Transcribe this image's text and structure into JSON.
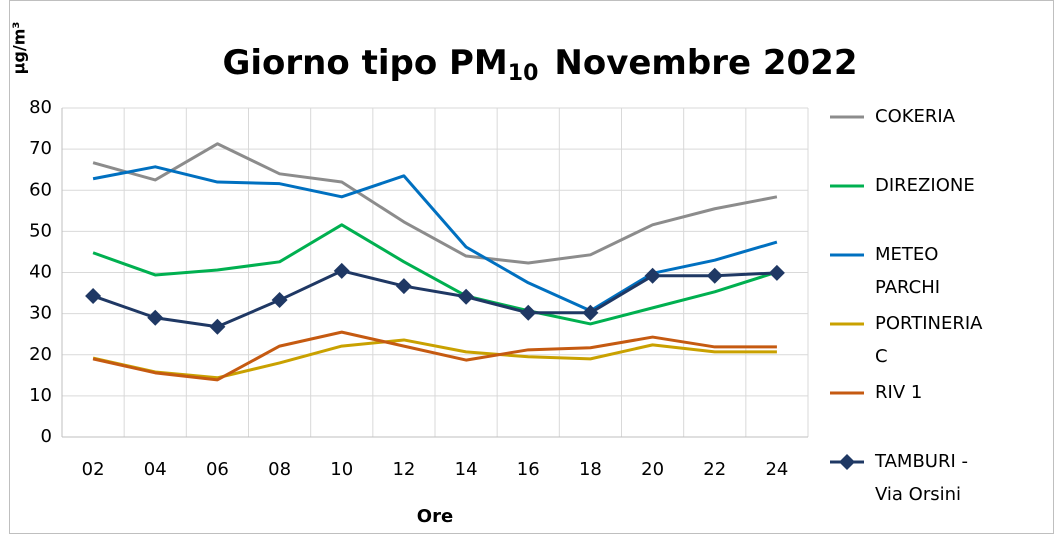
{
  "chart_data": {
    "type": "line",
    "title": [
      "Giorno tipo PM",
      "10",
      "Novembre 2022"
    ],
    "y_label": "µg/m³",
    "x_label": "Ore",
    "categories": [
      "02",
      "04",
      "06",
      "08",
      "10",
      "12",
      "14",
      "16",
      "18",
      "20",
      "22",
      "24"
    ],
    "series": [
      {
        "name": "COKERIA",
        "color": "#8c8c8c",
        "values": [
          66.7,
          62.5,
          71.3,
          64,
          62,
          52.3,
          44,
          42.3,
          44.3,
          51.6,
          55.5,
          58.4
        ]
      },
      {
        "name": "DIREZIONE",
        "color": "#00b050",
        "values": [
          44.8,
          39.4,
          40.6,
          42.6,
          51.6,
          42.6,
          34.3,
          30.7,
          27.5,
          31.4,
          35.3,
          40.1
        ]
      },
      {
        "name": "METEO PARCHI",
        "color": "#0070c0",
        "values": [
          62.8,
          65.7,
          62,
          61.6,
          58.4,
          63.5,
          46.2,
          37.5,
          30.7,
          39.8,
          43,
          47.4
        ]
      },
      {
        "name": "PORTINERIA C",
        "color": "#c9a100",
        "values": [
          19.2,
          15.8,
          14.4,
          18,
          22.1,
          23.6,
          20.7,
          19.5,
          19,
          22.4,
          20.7,
          20.7
        ]
      },
      {
        "name": "RIV 1",
        "color": "#c55a11",
        "values": [
          19,
          15.6,
          13.9,
          22.1,
          25.5,
          22.1,
          18.7,
          21.2,
          21.7,
          24.3,
          21.9,
          21.9
        ]
      },
      {
        "name": "TAMBURI - Via Orsini",
        "color": "#1f3864",
        "marker": "diamond",
        "values": [
          34.3,
          29,
          26.8,
          33.3,
          40.4,
          36.7,
          34.1,
          30.2,
          30.2,
          39.2,
          39.2,
          39.9
        ]
      }
    ],
    "ylim": [
      0,
      80
    ],
    "yticks": [
      0,
      10,
      20,
      30,
      40,
      50,
      60,
      70,
      80
    ],
    "grid": true
  }
}
